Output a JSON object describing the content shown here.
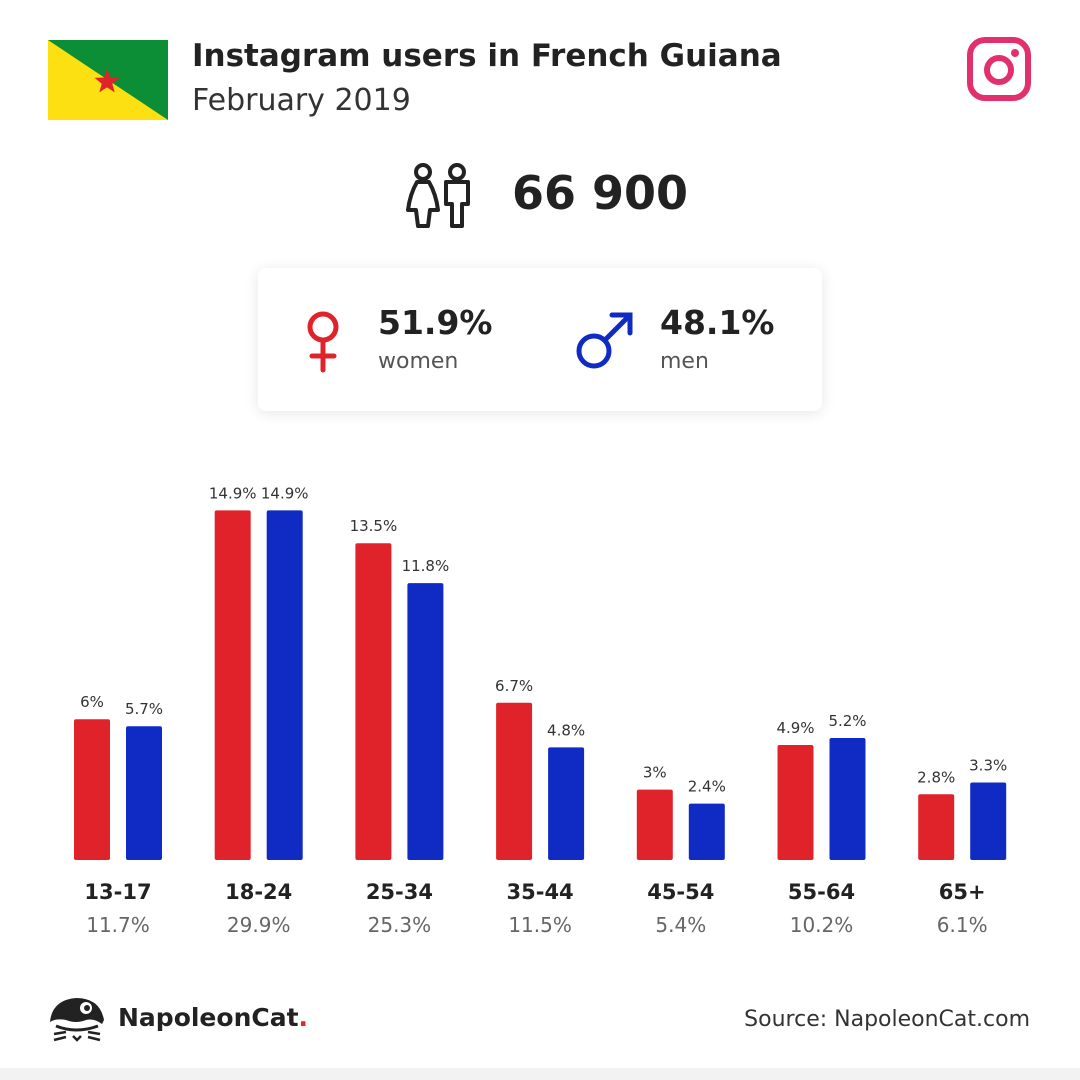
{
  "header": {
    "title": "Instagram users in French Guiana",
    "subtitle": "February 2019"
  },
  "icons": {
    "flag": "french-guiana-flag-icon",
    "platform": "instagram-icon",
    "users": "users-icon",
    "female": "female-symbol-icon",
    "male": "male-symbol-icon",
    "logo": "napoleoncat-logo-icon"
  },
  "summary": {
    "total_users": "66 900",
    "women_pct": "51.9%",
    "women_label": "women",
    "men_pct": "48.1%",
    "men_label": "men"
  },
  "colors": {
    "women": "#e0232a",
    "men": "#0f2bc3",
    "instagram": "#e1306c",
    "flag_green": "#0b8e36",
    "flag_yellow": "#fde012",
    "flag_star": "#e0232a"
  },
  "chart_data": {
    "type": "bar",
    "categories": [
      "13-17",
      "18-24",
      "25-34",
      "35-44",
      "45-54",
      "55-64",
      "65+"
    ],
    "category_totals": [
      "11.7%",
      "29.9%",
      "25.3%",
      "11.5%",
      "5.4%",
      "10.2%",
      "6.1%"
    ],
    "series": [
      {
        "key": "women",
        "values": [
          6,
          14.9,
          13.5,
          6.7,
          3,
          4.9,
          2.8
        ],
        "labels": [
          "6%",
          "14.9%",
          "13.5%",
          "6.7%",
          "3%",
          "4.9%",
          "2.8%"
        ]
      },
      {
        "key": "men",
        "values": [
          5.7,
          14.9,
          11.8,
          4.8,
          2.4,
          5.2,
          3.3
        ],
        "labels": [
          "5.7%",
          "14.9%",
          "11.8%",
          "4.8%",
          "2.4%",
          "5.2%",
          "3.3%"
        ]
      }
    ],
    "ylim": [
      0,
      15
    ]
  },
  "footer": {
    "brand": "NapoleonCat",
    "brand_dot": ".",
    "source": "Source: NapoleonCat.com"
  }
}
